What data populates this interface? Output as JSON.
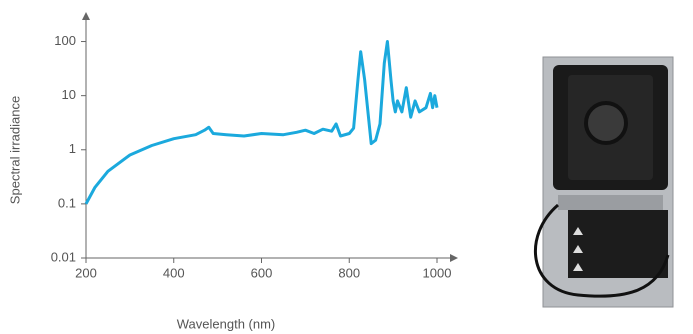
{
  "chart_data": {
    "type": "line",
    "xlabel": "Wavelength (nm)",
    "ylabel": "Spectral irradiance",
    "x": [
      200,
      220,
      250,
      300,
      350,
      400,
      450,
      470,
      480,
      490,
      520,
      560,
      600,
      650,
      680,
      700,
      720,
      740,
      760,
      770,
      780,
      800,
      810,
      820,
      826,
      835,
      850,
      860,
      870,
      880,
      887,
      895,
      900,
      905,
      910,
      920,
      930,
      940,
      950,
      960,
      975,
      985,
      990,
      995,
      1000
    ],
    "series": [
      {
        "color": "#1ba9dd",
        "values": [
          0.1,
          0.2,
          0.4,
          0.8,
          1.2,
          1.6,
          1.9,
          2.3,
          2.6,
          2.0,
          1.9,
          1.8,
          2.0,
          1.9,
          2.1,
          2.3,
          2.0,
          2.4,
          2.2,
          3.0,
          1.8,
          2.0,
          2.5,
          20,
          65,
          20,
          1.3,
          1.5,
          3,
          40,
          100,
          20,
          8,
          5,
          8,
          5,
          14,
          4,
          8,
          5,
          6,
          11,
          6,
          10,
          6
        ]
      }
    ],
    "xlim": [
      200,
      1000
    ],
    "xticks": [
      200,
      400,
      600,
      800,
      1000
    ],
    "ylim": [
      0.01,
      250
    ],
    "yticks": [
      0.01,
      0.1,
      1,
      10,
      100
    ],
    "ylog": true
  }
}
